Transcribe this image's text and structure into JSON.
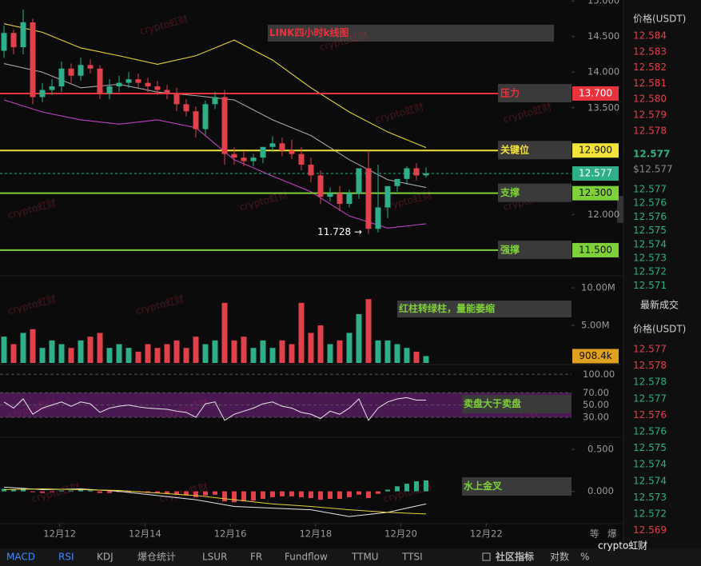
{
  "title": "LINK四小时k线图",
  "watermark": "crypto虹财",
  "main": {
    "ylim": [
      11.14,
      15.013
    ],
    "yticks": [
      {
        "value": 15,
        "label": "15.000"
      },
      {
        "value": 14.5,
        "label": "14.500"
      },
      {
        "value": 14,
        "label": "14.000"
      },
      {
        "value": 13.5,
        "label": "13.500"
      },
      {
        "value": 12,
        "label": "12.000"
      }
    ],
    "candles": {
      "open": [
        14.3,
        14.55,
        14.35,
        14.7,
        13.65,
        13.75,
        13.8,
        14.05,
        13.95,
        14.1,
        14.05,
        13.7,
        13.8,
        13.85,
        13.9,
        13.85,
        13.8,
        13.75,
        13.7,
        13.55,
        13.45,
        13.2,
        13.55,
        13.65,
        12.85,
        12.8,
        12.75,
        12.8,
        12.95,
        13.0,
        12.9,
        12.85,
        12.7,
        12.55,
        12.25,
        12.3,
        12.15,
        12.3,
        12.65,
        11.8,
        12.1,
        12.4,
        12.5,
        12.65,
        12.55
      ],
      "high": [
        14.65,
        14.6,
        14.88,
        14.75,
        13.85,
        13.9,
        14.15,
        14.12,
        14.2,
        14.18,
        14.1,
        13.9,
        13.95,
        14.0,
        13.98,
        13.92,
        13.88,
        13.82,
        13.78,
        13.62,
        13.52,
        13.6,
        13.72,
        13.75,
        12.95,
        12.88,
        12.85,
        12.9,
        13.1,
        13.08,
        13.05,
        12.95,
        12.8,
        12.62,
        12.38,
        12.4,
        12.35,
        12.4,
        12.9,
        12.7,
        12.2,
        12.45,
        12.68,
        12.72,
        12.66
      ],
      "low": [
        14.2,
        14.25,
        14.25,
        13.55,
        13.58,
        13.68,
        13.72,
        13.85,
        13.88,
        13.98,
        13.62,
        13.62,
        13.72,
        13.78,
        13.78,
        13.72,
        13.68,
        13.62,
        13.45,
        13.38,
        13.08,
        13.12,
        13.48,
        12.7,
        12.7,
        12.68,
        12.68,
        12.72,
        12.88,
        12.82,
        12.78,
        12.62,
        12.45,
        12.15,
        12.18,
        12.05,
        12.1,
        12.22,
        11.728,
        11.75,
        11.95,
        12.32,
        12.42,
        12.48,
        12.52
      ],
      "close": [
        14.55,
        14.35,
        14.7,
        13.65,
        13.75,
        13.8,
        14.05,
        13.95,
        14.1,
        14.05,
        13.7,
        13.8,
        13.85,
        13.9,
        13.85,
        13.8,
        13.75,
        13.7,
        13.55,
        13.45,
        13.2,
        13.55,
        13.65,
        12.85,
        12.8,
        12.75,
        12.8,
        12.95,
        13.0,
        12.9,
        12.85,
        12.7,
        12.55,
        12.25,
        12.3,
        12.15,
        12.3,
        12.65,
        11.8,
        12.1,
        12.4,
        12.5,
        12.65,
        12.55,
        12.577
      ],
      "up_color": "#2fae8a",
      "down_color": "#e0414a"
    },
    "low_label": "11.728 →",
    "bands": {
      "x": [
        0,
        4,
        8,
        12,
        16,
        20,
        24,
        28,
        32,
        36,
        40,
        44
      ],
      "series": [
        {
          "color": "#e6d23a",
          "values": [
            14.68,
            14.56,
            14.34,
            14.23,
            14.11,
            14.23,
            14.45,
            14.17,
            13.78,
            13.44,
            13.16,
            12.94
          ]
        },
        {
          "color": "#a8a8a8",
          "values": [
            14.12,
            14.0,
            13.78,
            13.83,
            13.72,
            13.67,
            13.61,
            13.33,
            13.11,
            12.77,
            12.49,
            12.38
          ]
        },
        {
          "color": "#c040c0",
          "values": [
            13.61,
            13.44,
            13.33,
            13.27,
            13.33,
            13.22,
            12.77,
            12.54,
            12.32,
            11.98,
            11.81,
            11.87
          ]
        }
      ]
    },
    "levels": [
      {
        "name": "压力",
        "value": 13.7,
        "label": "13.700",
        "color": "#e8323c",
        "label_text": "#ffffff"
      },
      {
        "name": "关键位",
        "value": 12.9,
        "label": "12.900",
        "color": "#f2e23a",
        "label_text": "#111111"
      },
      {
        "name": "支撑",
        "value": 12.3,
        "label": "12.300",
        "color": "#7fd13a",
        "label_text": "#111111"
      },
      {
        "name": "强撑",
        "value": 11.5,
        "label": "11.500",
        "color": "#7fd13a",
        "label_text": "#111111"
      }
    ],
    "last": {
      "value": 12.577,
      "label": "12.577",
      "color": "#2fae8a"
    }
  },
  "volume": {
    "ylim": [
      0,
      11.6
    ],
    "yticks": [
      {
        "value": 10,
        "label": "10.00M"
      },
      {
        "value": 5,
        "label": "5.00M"
      }
    ],
    "values": [
      3.5,
      2.5,
      4,
      4.5,
      2,
      3,
      2.5,
      2,
      3,
      3.5,
      4,
      2,
      2.5,
      2,
      1.5,
      2.5,
      2,
      2.5,
      3,
      2,
      3.5,
      2.5,
      3,
      8,
      3,
      3.5,
      2,
      3,
      2,
      3,
      2.5,
      8,
      4,
      5,
      2.5,
      3,
      4,
      6.5,
      8.5,
      3,
      3,
      2.5,
      2,
      1.5,
      0.9084
    ],
    "last_label": "908.4k",
    "note": "红柱转绿柱，量能萎缩"
  },
  "rsi": {
    "ylim": [
      0,
      116
    ],
    "yticks": [
      {
        "value": 100,
        "label": "100.00"
      },
      {
        "value": 70,
        "label": "70.00"
      },
      {
        "value": 50,
        "label": "50.00"
      },
      {
        "value": 30,
        "label": "30.00"
      }
    ],
    "band": [
      30,
      70
    ],
    "values": [
      55,
      45,
      60,
      35,
      45,
      50,
      55,
      48,
      55,
      52,
      38,
      45,
      48,
      50,
      47,
      45,
      44,
      43,
      40,
      38,
      30,
      52,
      55,
      25,
      35,
      40,
      45,
      52,
      55,
      48,
      45,
      38,
      35,
      28,
      40,
      35,
      45,
      60,
      25,
      45,
      55,
      60,
      62,
      58,
      58
    ],
    "color": "#e8e8e8",
    "note": "卖盘大于卖盘"
  },
  "macd": {
    "ylim": [
      -0.385,
      0.644
    ],
    "yticks": [
      {
        "value": 0.5,
        "label": "0.500"
      },
      {
        "value": 0,
        "label": "0.000"
      }
    ],
    "histogram": [
      0.03,
      0.02,
      0.04,
      -0.01,
      -0.02,
      -0.01,
      0.01,
      0.01,
      0.02,
      0.01,
      -0.02,
      -0.02,
      -0.01,
      -0.01,
      -0.01,
      -0.02,
      -0.02,
      -0.03,
      -0.04,
      -0.05,
      -0.07,
      -0.05,
      -0.04,
      -0.12,
      -0.13,
      -0.12,
      -0.11,
      -0.09,
      -0.07,
      -0.06,
      -0.06,
      -0.07,
      -0.08,
      -0.1,
      -0.09,
      -0.09,
      -0.07,
      -0.04,
      -0.08,
      -0.03,
      0.02,
      0.06,
      0.09,
      0.12,
      0.13
    ],
    "lines": {
      "x": [
        0,
        4,
        8,
        12,
        16,
        20,
        24,
        28,
        32,
        36,
        40,
        44
      ],
      "series": [
        {
          "color": "#e8e8e8",
          "values": [
            0.05,
            0.02,
            0.03,
            0.0,
            -0.05,
            -0.1,
            -0.18,
            -0.2,
            -0.22,
            -0.3,
            -0.25,
            -0.15
          ]
        },
        {
          "color": "#e6d23a",
          "values": [
            0.02,
            0.03,
            0.02,
            0.01,
            -0.02,
            -0.05,
            -0.1,
            -0.15,
            -0.18,
            -0.22,
            -0.25,
            -0.27
          ]
        }
      ]
    },
    "note": "水上金叉"
  },
  "x_axis": {
    "xlim": [
      10.6,
      24
    ],
    "ticks": [
      {
        "value": 12,
        "label": "12月12"
      },
      {
        "value": 14,
        "label": "12月14"
      },
      {
        "value": 16,
        "label": "12月16"
      },
      {
        "value": 18,
        "label": "12月18"
      },
      {
        "value": 20,
        "label": "12月20"
      },
      {
        "value": 22,
        "label": "12月22"
      }
    ]
  },
  "axis_buttons": [
    "等",
    "爆"
  ],
  "order_book": {
    "header": "价格(USDT)",
    "asks": [
      "12.584",
      "12.583",
      "12.582",
      "12.581",
      "12.580",
      "12.579",
      "12.578"
    ],
    "price": "12.577",
    "price_usd": "$12.577",
    "bids": [
      "12.577",
      "12.576",
      "12.576",
      "12.575",
      "12.574",
      "12.573",
      "12.572",
      "12.571"
    ],
    "trades_title": "最新成交",
    "trades_header": "价格(USDT)",
    "trades": [
      {
        "price": "12.577",
        "color": "#e0414a"
      },
      {
        "price": "12.578",
        "color": "#e0414a"
      },
      {
        "price": "12.578",
        "color": "#2fae8a"
      },
      {
        "price": "12.577",
        "color": "#2fae8a"
      },
      {
        "price": "12.576",
        "color": "#e0414a"
      },
      {
        "price": "12.576",
        "color": "#2fae8a"
      },
      {
        "price": "12.575",
        "color": "#2fae8a"
      },
      {
        "price": "12.574",
        "color": "#2fae8a"
      },
      {
        "price": "12.574",
        "color": "#2fae8a"
      },
      {
        "price": "12.573",
        "color": "#2fae8a"
      },
      {
        "price": "12.572",
        "color": "#2fae8a"
      },
      {
        "price": "12.569",
        "color": "#e0414a"
      }
    ]
  },
  "toolbar": {
    "tabs": [
      "MACD",
      "RSI",
      "KDJ",
      "爆仓统计",
      "LSUR",
      "FR",
      "Fundflow",
      "TTMU",
      "TTSI"
    ],
    "active": [
      0,
      1
    ],
    "right": [
      "社区指标",
      "对数",
      "%"
    ]
  }
}
